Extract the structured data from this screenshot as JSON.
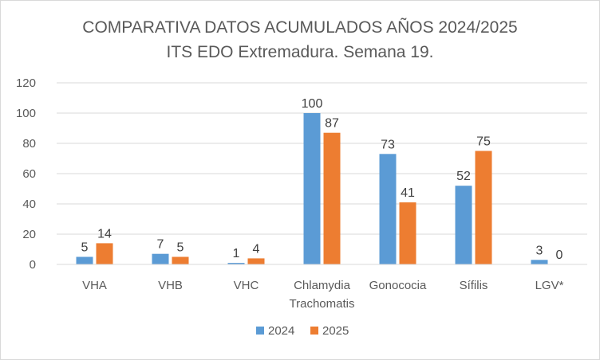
{
  "chart_data": {
    "type": "bar",
    "title": "COMPARATIVA DATOS ACUMULADOS AÑOS 2024/2025",
    "subtitle": "ITS EDO Extremadura. Semana 19.",
    "categories": [
      [
        "VHA"
      ],
      [
        "VHB"
      ],
      [
        "VHC"
      ],
      [
        "Chlamydia",
        "Trachomatis"
      ],
      [
        "Gonococia"
      ],
      [
        "Sífilis"
      ],
      [
        "LGV*"
      ]
    ],
    "series": [
      {
        "name": "2024",
        "color": "#5b9bd5",
        "values": [
          5,
          7,
          1,
          100,
          73,
          52,
          3
        ]
      },
      {
        "name": "2025",
        "color": "#ed7d31",
        "values": [
          14,
          5,
          4,
          87,
          41,
          75,
          0
        ]
      }
    ],
    "yticks": [
      "0",
      "20",
      "40",
      "60",
      "80",
      "100",
      "120"
    ],
    "ylim": [
      0,
      120
    ],
    "grid": true,
    "legend_position": "bottom",
    "data_labels": true
  }
}
